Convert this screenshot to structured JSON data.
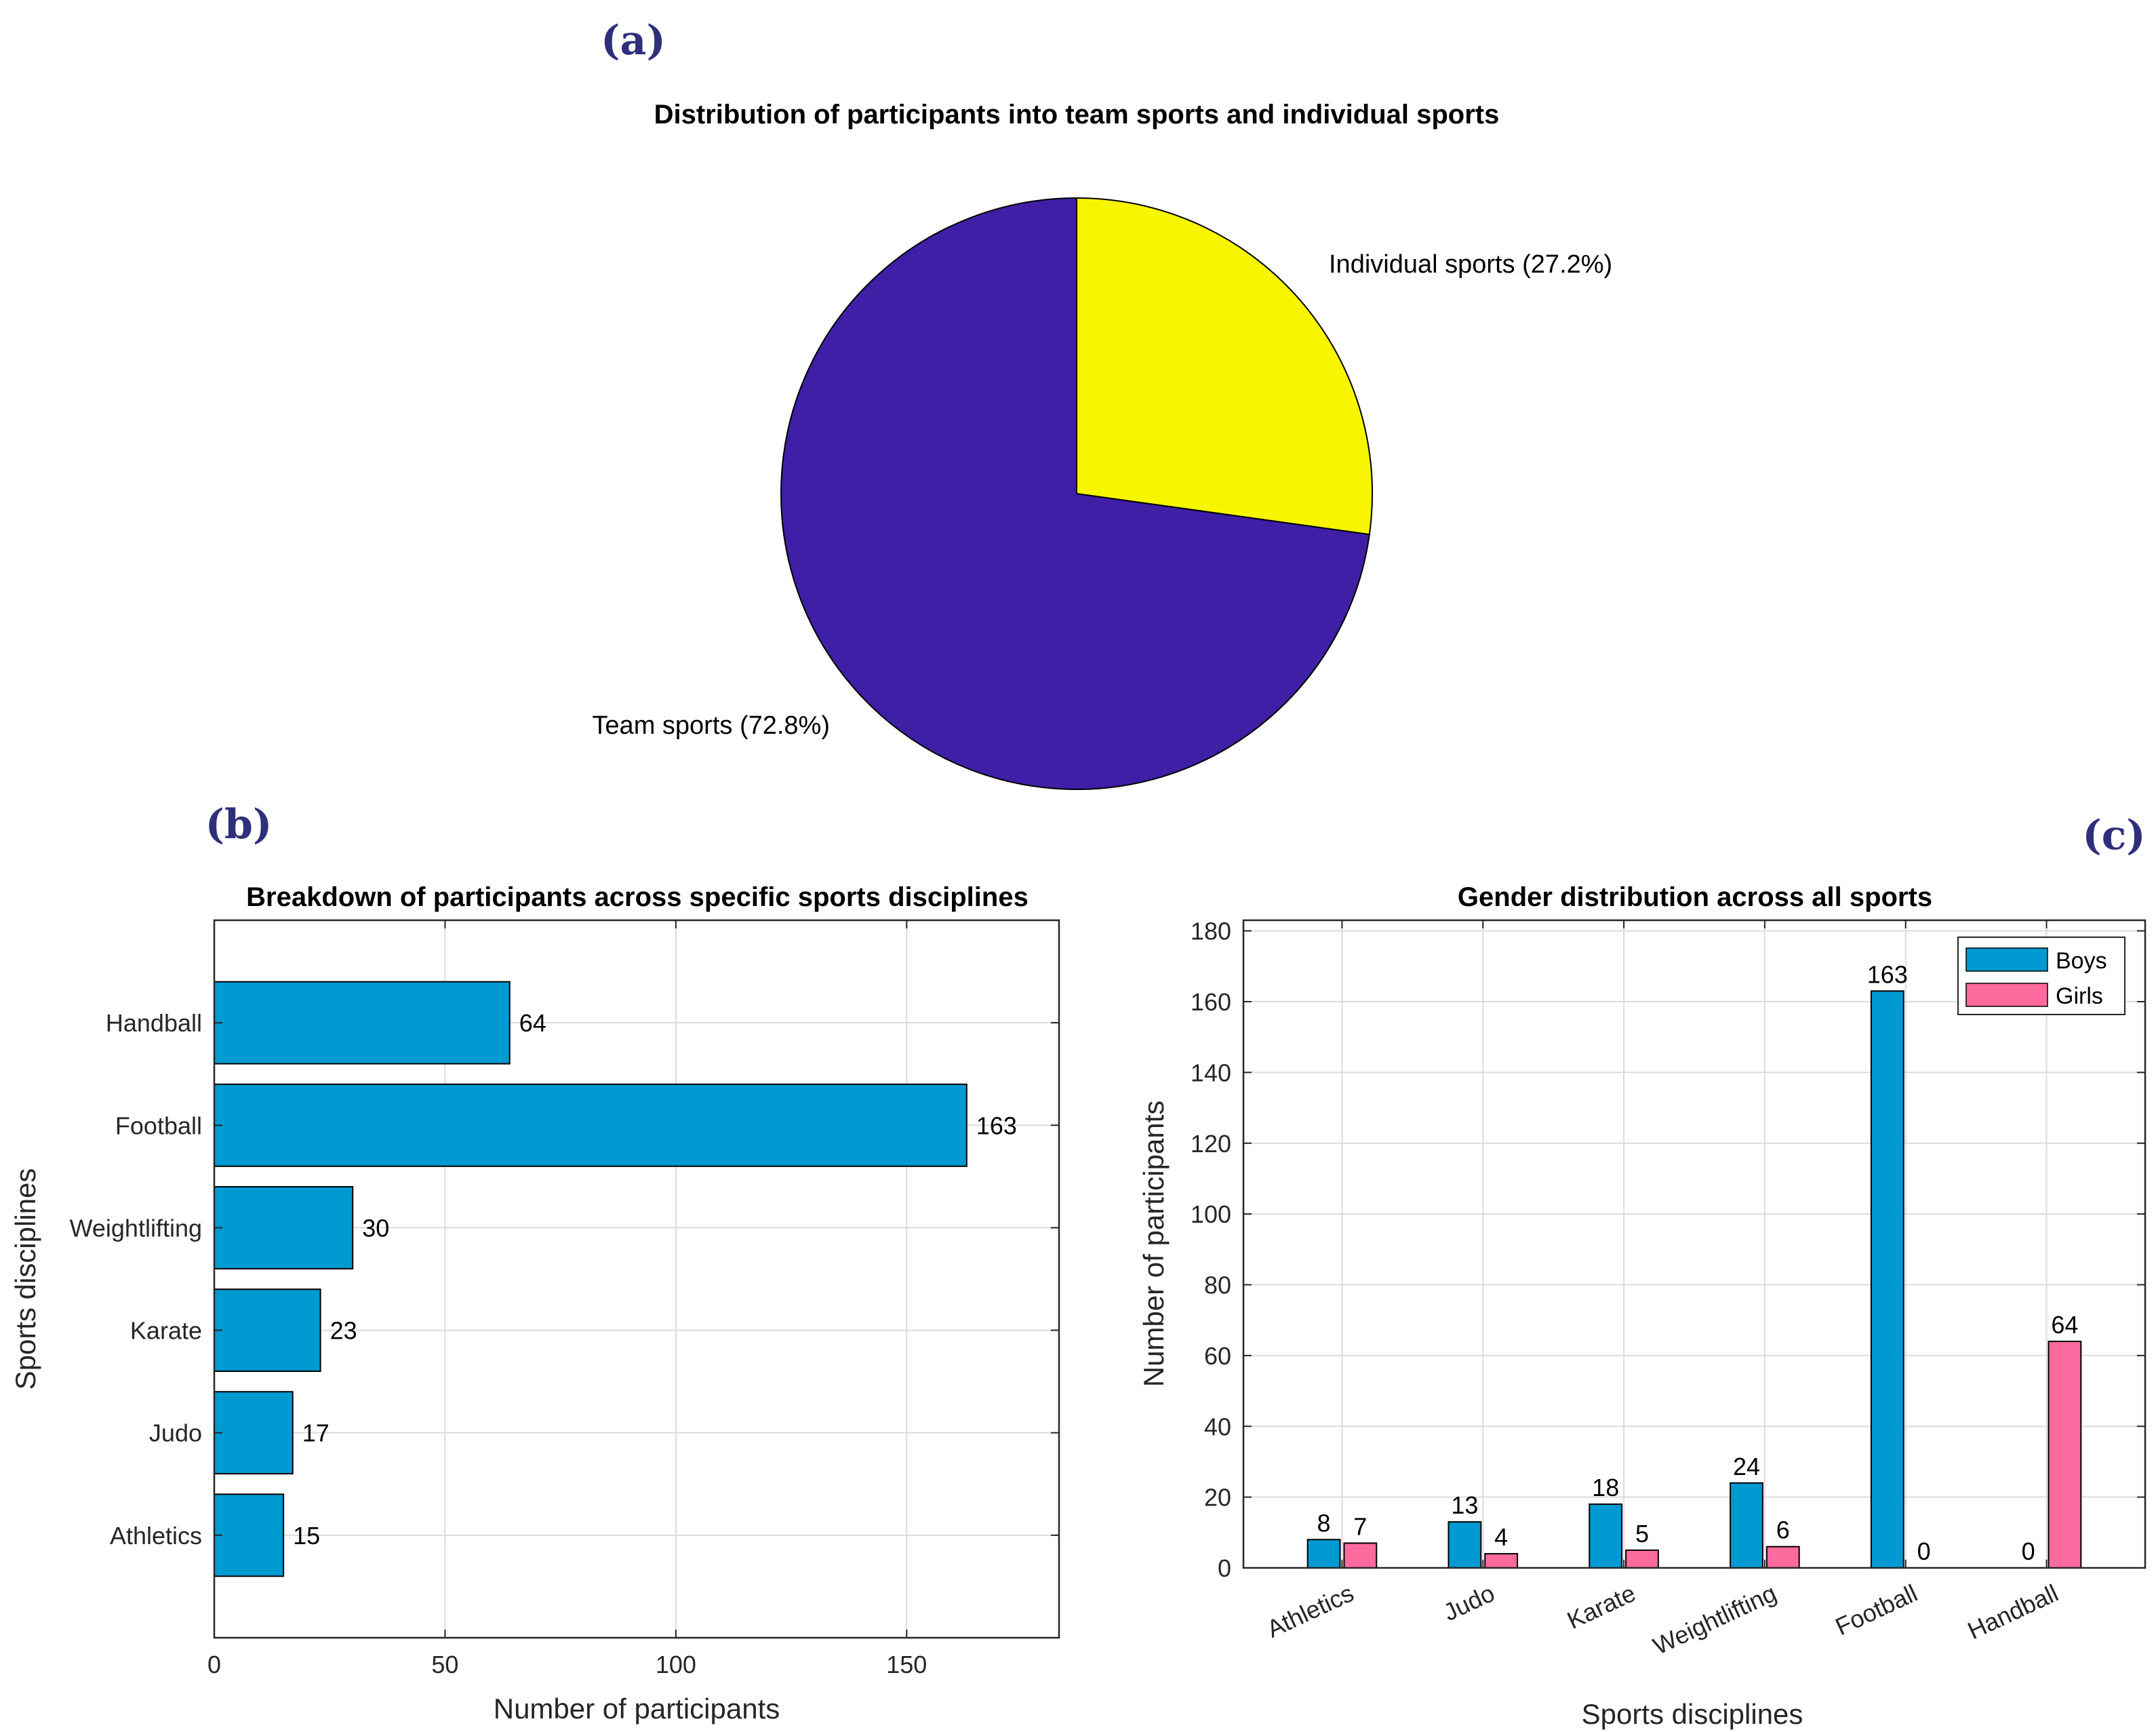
{
  "panels": {
    "a": "(a)",
    "b": "(b)",
    "c": "(c)"
  },
  "colors": {
    "team": "#3f1fa6",
    "individual": "#f7f500",
    "bar": "#009ad2",
    "boys": "#009ad2",
    "girls": "#fd6a9e"
  },
  "chart_data": [
    {
      "id": "a",
      "type": "pie",
      "title": "Distribution of participants into team sports and individual sports",
      "slices": [
        {
          "name": "Individual sports",
          "label": "Individual sports (27.2%)",
          "value": 27.2,
          "color": "#f7f500"
        },
        {
          "name": "Team sports",
          "label": "Team sports (72.8%)",
          "value": 72.8,
          "color": "#3f1fa6"
        }
      ]
    },
    {
      "id": "b",
      "type": "bar",
      "orientation": "horizontal",
      "title": "Breakdown of participants across specific sports disciplines",
      "xlabel": "Number of participants",
      "ylabel": "Sports disciplines",
      "categories": [
        "Athletics",
        "Judo",
        "Karate",
        "Weightlifting",
        "Football",
        "Handball"
      ],
      "values": [
        15,
        17,
        23,
        30,
        163,
        64
      ],
      "xlim": [
        0,
        183
      ],
      "xticks": [
        0,
        50,
        100,
        150
      ],
      "grid": true
    },
    {
      "id": "c",
      "type": "bar",
      "orientation": "vertical",
      "title": "Gender distribution across all sports",
      "xlabel": "Sports disciplines",
      "ylabel": "Number of participants",
      "categories": [
        "Athletics",
        "Judo",
        "Karate",
        "Weightlifting",
        "Football",
        "Handball"
      ],
      "series": [
        {
          "name": "Boys",
          "values": [
            8,
            13,
            18,
            24,
            163,
            0
          ]
        },
        {
          "name": "Girls",
          "values": [
            7,
            4,
            5,
            6,
            0,
            64
          ]
        }
      ],
      "ylim": [
        0,
        183
      ],
      "yticks": [
        0,
        20,
        40,
        60,
        80,
        100,
        120,
        140,
        160,
        180
      ],
      "legend": "top-right",
      "grid": true
    }
  ]
}
